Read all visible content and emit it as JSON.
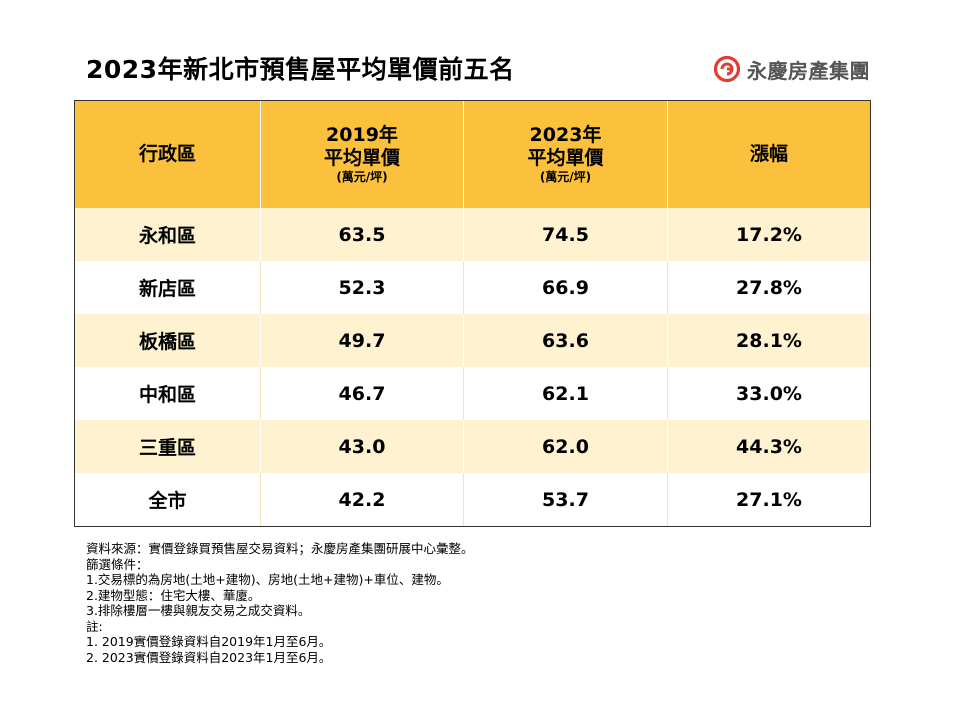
{
  "title": "2023年新北市預售屋平均單價前五名",
  "brand": {
    "name": "永慶房產集團",
    "logo_icon": "yungching-logo-icon",
    "logo_color": "#e03c31"
  },
  "table": {
    "headers": [
      {
        "line1": "行政區",
        "line2": "",
        "unit": ""
      },
      {
        "line1": "2019年",
        "line2": "平均單價",
        "unit": "(萬元/坪)"
      },
      {
        "line1": "2023年",
        "line2": "平均單價",
        "unit": "(萬元/坪)"
      },
      {
        "line1": "漲幅",
        "line2": "",
        "unit": ""
      }
    ],
    "rows": [
      [
        "永和區",
        "63.5",
        "74.5",
        "17.2%"
      ],
      [
        "新店區",
        "52.3",
        "66.9",
        "27.8%"
      ],
      [
        "板橋區",
        "49.7",
        "63.6",
        "28.1%"
      ],
      [
        "中和區",
        "46.7",
        "62.1",
        "33.0%"
      ],
      [
        "三重區",
        "43.0",
        "62.0",
        "44.3%"
      ],
      [
        "全市",
        "42.2",
        "53.7",
        "27.1%"
      ]
    ],
    "header_color": "#fcc13c",
    "stripe_color": "#fef2d0"
  },
  "notes": [
    "資料來源：實價登錄買預售屋交易資料；永慶房產集團研展中心彙整。",
    "篩選條件：",
    "1.交易標的為房地(土地+建物)、房地(土地+建物)+車位、建物。",
    "2.建物型態：住宅大樓、華廈。",
    "3.排除樓層一樓與親友交易之成交資料。",
    "註:",
    "1. 2019實價登錄資料自2019年1月至6月。",
    "2. 2023實價登錄資料自2023年1月至6月。"
  ]
}
